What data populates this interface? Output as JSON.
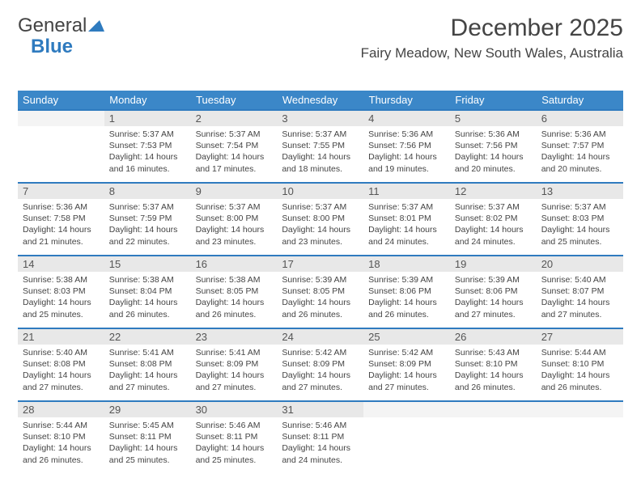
{
  "logo": {
    "part1": "General",
    "part2": "Blue"
  },
  "title": "December 2025",
  "location": "Fairy Meadow, New South Wales, Australia",
  "colors": {
    "header_bg": "#3b87c8",
    "header_text": "#ffffff",
    "daynum_bg": "#e8e8e8",
    "border_accent": "#2f7bbf",
    "text": "#444444"
  },
  "day_headers": [
    "Sunday",
    "Monday",
    "Tuesday",
    "Wednesday",
    "Thursday",
    "Friday",
    "Saturday"
  ],
  "weeks": [
    {
      "nums": [
        "",
        "1",
        "2",
        "3",
        "4",
        "5",
        "6"
      ],
      "cells": [
        null,
        {
          "sunrise": "Sunrise: 5:37 AM",
          "sunset": "Sunset: 7:53 PM",
          "day1": "Daylight: 14 hours",
          "day2": "and 16 minutes."
        },
        {
          "sunrise": "Sunrise: 5:37 AM",
          "sunset": "Sunset: 7:54 PM",
          "day1": "Daylight: 14 hours",
          "day2": "and 17 minutes."
        },
        {
          "sunrise": "Sunrise: 5:37 AM",
          "sunset": "Sunset: 7:55 PM",
          "day1": "Daylight: 14 hours",
          "day2": "and 18 minutes."
        },
        {
          "sunrise": "Sunrise: 5:36 AM",
          "sunset": "Sunset: 7:56 PM",
          "day1": "Daylight: 14 hours",
          "day2": "and 19 minutes."
        },
        {
          "sunrise": "Sunrise: 5:36 AM",
          "sunset": "Sunset: 7:56 PM",
          "day1": "Daylight: 14 hours",
          "day2": "and 20 minutes."
        },
        {
          "sunrise": "Sunrise: 5:36 AM",
          "sunset": "Sunset: 7:57 PM",
          "day1": "Daylight: 14 hours",
          "day2": "and 20 minutes."
        }
      ]
    },
    {
      "nums": [
        "7",
        "8",
        "9",
        "10",
        "11",
        "12",
        "13"
      ],
      "cells": [
        {
          "sunrise": "Sunrise: 5:36 AM",
          "sunset": "Sunset: 7:58 PM",
          "day1": "Daylight: 14 hours",
          "day2": "and 21 minutes."
        },
        {
          "sunrise": "Sunrise: 5:37 AM",
          "sunset": "Sunset: 7:59 PM",
          "day1": "Daylight: 14 hours",
          "day2": "and 22 minutes."
        },
        {
          "sunrise": "Sunrise: 5:37 AM",
          "sunset": "Sunset: 8:00 PM",
          "day1": "Daylight: 14 hours",
          "day2": "and 23 minutes."
        },
        {
          "sunrise": "Sunrise: 5:37 AM",
          "sunset": "Sunset: 8:00 PM",
          "day1": "Daylight: 14 hours",
          "day2": "and 23 minutes."
        },
        {
          "sunrise": "Sunrise: 5:37 AM",
          "sunset": "Sunset: 8:01 PM",
          "day1": "Daylight: 14 hours",
          "day2": "and 24 minutes."
        },
        {
          "sunrise": "Sunrise: 5:37 AM",
          "sunset": "Sunset: 8:02 PM",
          "day1": "Daylight: 14 hours",
          "day2": "and 24 minutes."
        },
        {
          "sunrise": "Sunrise: 5:37 AM",
          "sunset": "Sunset: 8:03 PM",
          "day1": "Daylight: 14 hours",
          "day2": "and 25 minutes."
        }
      ]
    },
    {
      "nums": [
        "14",
        "15",
        "16",
        "17",
        "18",
        "19",
        "20"
      ],
      "cells": [
        {
          "sunrise": "Sunrise: 5:38 AM",
          "sunset": "Sunset: 8:03 PM",
          "day1": "Daylight: 14 hours",
          "day2": "and 25 minutes."
        },
        {
          "sunrise": "Sunrise: 5:38 AM",
          "sunset": "Sunset: 8:04 PM",
          "day1": "Daylight: 14 hours",
          "day2": "and 26 minutes."
        },
        {
          "sunrise": "Sunrise: 5:38 AM",
          "sunset": "Sunset: 8:05 PM",
          "day1": "Daylight: 14 hours",
          "day2": "and 26 minutes."
        },
        {
          "sunrise": "Sunrise: 5:39 AM",
          "sunset": "Sunset: 8:05 PM",
          "day1": "Daylight: 14 hours",
          "day2": "and 26 minutes."
        },
        {
          "sunrise": "Sunrise: 5:39 AM",
          "sunset": "Sunset: 8:06 PM",
          "day1": "Daylight: 14 hours",
          "day2": "and 26 minutes."
        },
        {
          "sunrise": "Sunrise: 5:39 AM",
          "sunset": "Sunset: 8:06 PM",
          "day1": "Daylight: 14 hours",
          "day2": "and 27 minutes."
        },
        {
          "sunrise": "Sunrise: 5:40 AM",
          "sunset": "Sunset: 8:07 PM",
          "day1": "Daylight: 14 hours",
          "day2": "and 27 minutes."
        }
      ]
    },
    {
      "nums": [
        "21",
        "22",
        "23",
        "24",
        "25",
        "26",
        "27"
      ],
      "cells": [
        {
          "sunrise": "Sunrise: 5:40 AM",
          "sunset": "Sunset: 8:08 PM",
          "day1": "Daylight: 14 hours",
          "day2": "and 27 minutes."
        },
        {
          "sunrise": "Sunrise: 5:41 AM",
          "sunset": "Sunset: 8:08 PM",
          "day1": "Daylight: 14 hours",
          "day2": "and 27 minutes."
        },
        {
          "sunrise": "Sunrise: 5:41 AM",
          "sunset": "Sunset: 8:09 PM",
          "day1": "Daylight: 14 hours",
          "day2": "and 27 minutes."
        },
        {
          "sunrise": "Sunrise: 5:42 AM",
          "sunset": "Sunset: 8:09 PM",
          "day1": "Daylight: 14 hours",
          "day2": "and 27 minutes."
        },
        {
          "sunrise": "Sunrise: 5:42 AM",
          "sunset": "Sunset: 8:09 PM",
          "day1": "Daylight: 14 hours",
          "day2": "and 27 minutes."
        },
        {
          "sunrise": "Sunrise: 5:43 AM",
          "sunset": "Sunset: 8:10 PM",
          "day1": "Daylight: 14 hours",
          "day2": "and 26 minutes."
        },
        {
          "sunrise": "Sunrise: 5:44 AM",
          "sunset": "Sunset: 8:10 PM",
          "day1": "Daylight: 14 hours",
          "day2": "and 26 minutes."
        }
      ]
    },
    {
      "nums": [
        "28",
        "29",
        "30",
        "31",
        "",
        "",
        ""
      ],
      "cells": [
        {
          "sunrise": "Sunrise: 5:44 AM",
          "sunset": "Sunset: 8:10 PM",
          "day1": "Daylight: 14 hours",
          "day2": "and 26 minutes."
        },
        {
          "sunrise": "Sunrise: 5:45 AM",
          "sunset": "Sunset: 8:11 PM",
          "day1": "Daylight: 14 hours",
          "day2": "and 25 minutes."
        },
        {
          "sunrise": "Sunrise: 5:46 AM",
          "sunset": "Sunset: 8:11 PM",
          "day1": "Daylight: 14 hours",
          "day2": "and 25 minutes."
        },
        {
          "sunrise": "Sunrise: 5:46 AM",
          "sunset": "Sunset: 8:11 PM",
          "day1": "Daylight: 14 hours",
          "day2": "and 24 minutes."
        },
        null,
        null,
        null
      ]
    }
  ]
}
